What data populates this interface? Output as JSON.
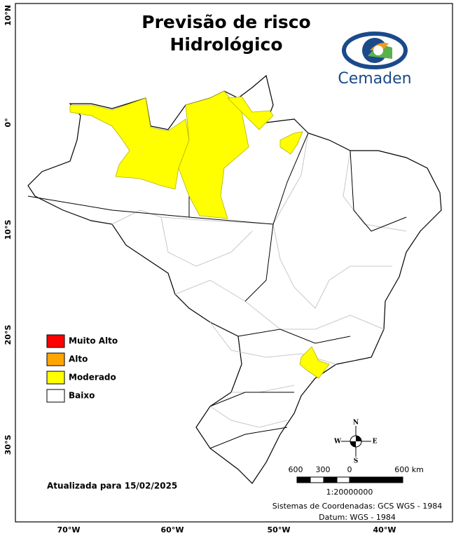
{
  "title": [
    "Previsão de risco",
    "Hidrológico"
  ],
  "logo": "Cemaden",
  "legend": [
    {
      "label": "Muito Alto",
      "color": "#ff0000"
    },
    {
      "label": "Alto",
      "color": "#ffa500"
    },
    {
      "label": "Moderado",
      "color": "#ffff00"
    },
    {
      "label": "Baixo",
      "color": "#ffffff"
    }
  ],
  "updated": "Atualizada para 15/02/2025",
  "scale": {
    "labels": [
      "600",
      "300",
      "0",
      "600 km"
    ],
    "ratio": "1:20000000"
  },
  "crs": [
    "Sistemas de Coordenadas: GCS WGS - 1984",
    "Datum: WGS - 1984"
  ],
  "axes": {
    "longitude": [
      "70°W",
      "60°W",
      "50°W",
      "40°W"
    ],
    "latitude": [
      "10°N",
      "0°",
      "10°S",
      "20°S",
      "30°S"
    ]
  },
  "compass": {
    "n": "N",
    "s": "S",
    "e": "E",
    "w": "W"
  }
}
